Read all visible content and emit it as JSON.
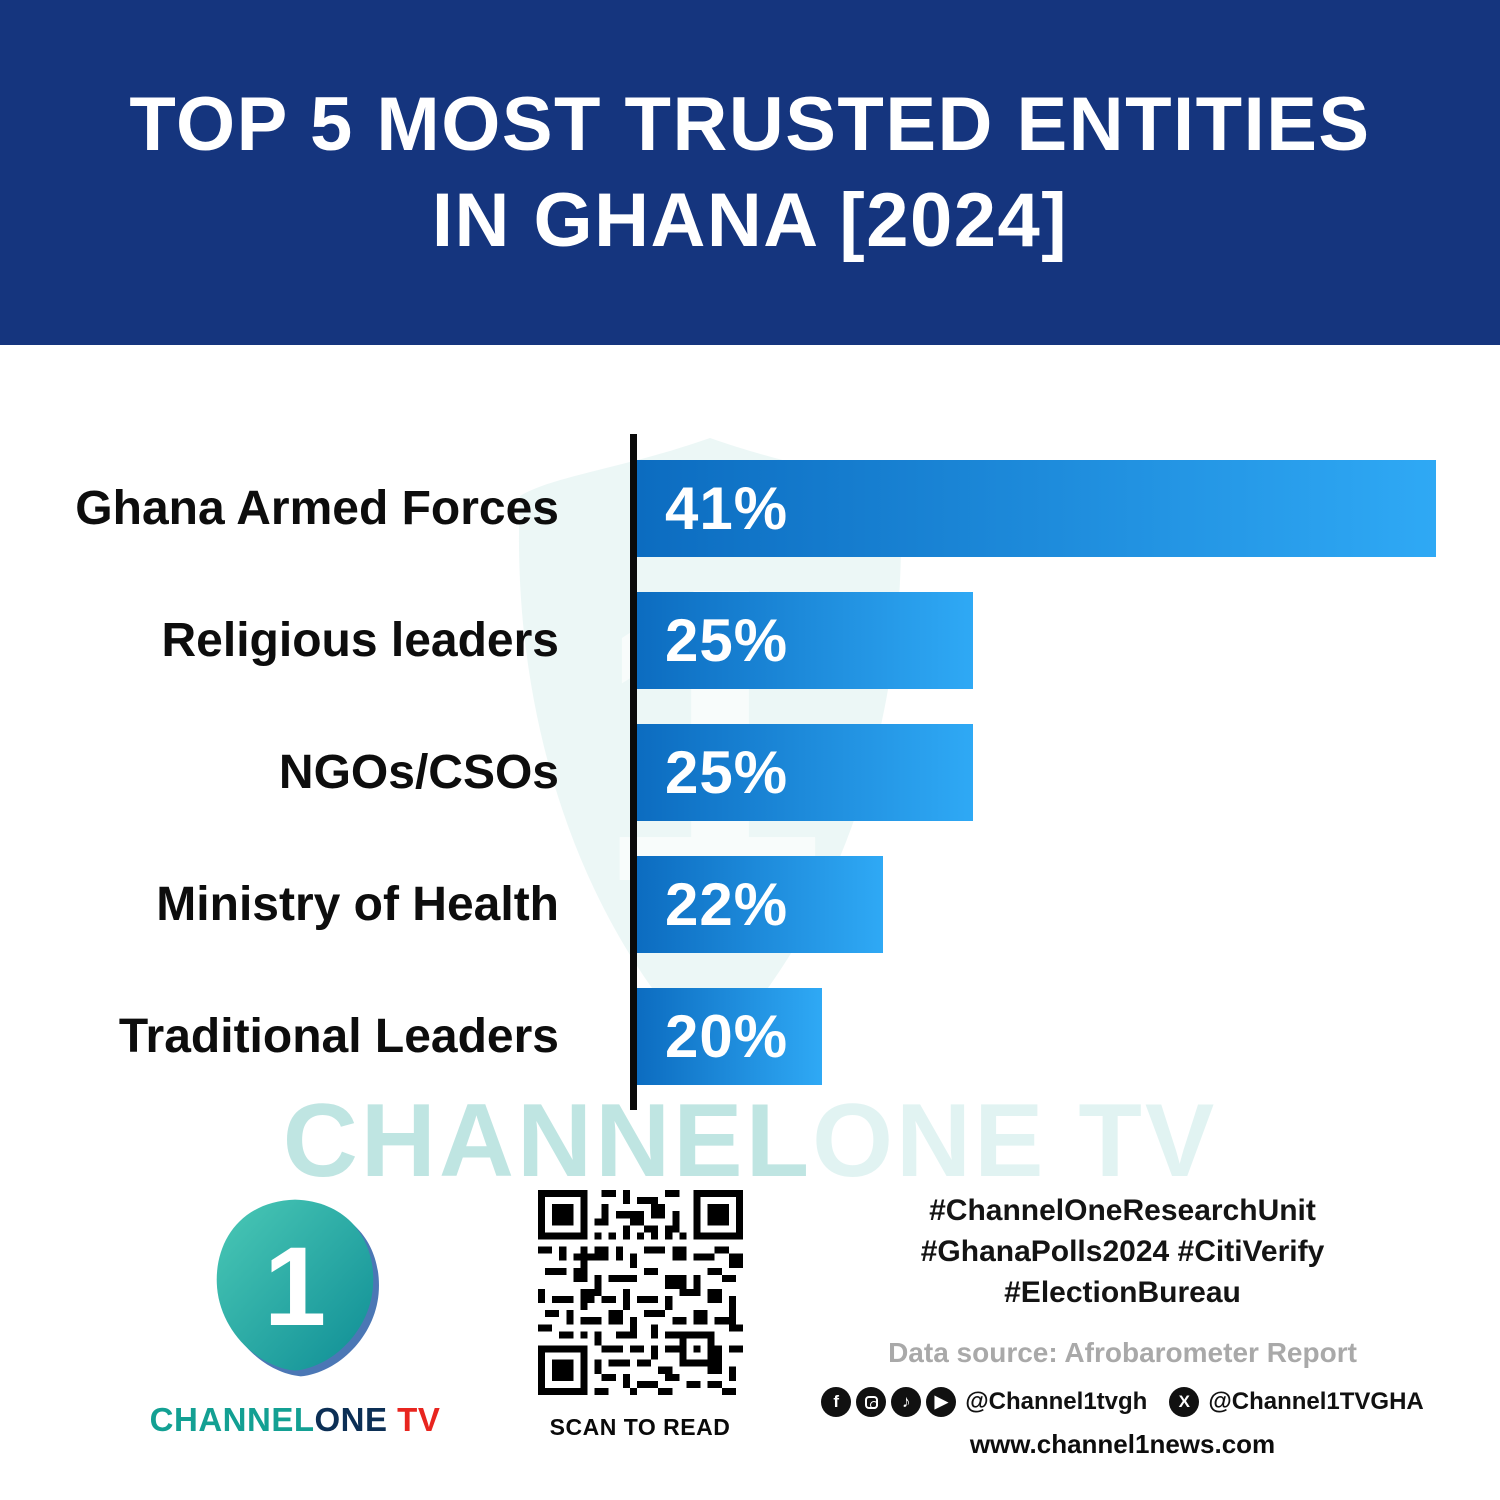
{
  "header": {
    "title_line1": "TOP 5 MOST TRUSTED ENTITIES",
    "title_line2": "IN GHANA [2024]",
    "bg_color": "#15357e",
    "text_color": "#ffffff"
  },
  "chart_data": {
    "type": "bar",
    "orientation": "horizontal",
    "title": "TOP 5 MOST TRUSTED ENTITIES IN GHANA [2024]",
    "categories": [
      "Ghana Armed Forces",
      "Religious leaders",
      "NGOs/CSOs",
      "Ministry of Health",
      "Traditional Leaders"
    ],
    "values": [
      41,
      25,
      25,
      22,
      20
    ],
    "value_labels": [
      "41%",
      "25%",
      "25%",
      "22%",
      "20%"
    ],
    "unit": "%",
    "xlim": [
      0,
      41
    ],
    "grid": false,
    "legend": false,
    "bar_color_gradient": [
      "#0c6cc0",
      "#2fa9f5"
    ],
    "axis_color": "#0a0a0a",
    "bar_width_pct": [
      100,
      42,
      42,
      30.8,
      23.2
    ]
  },
  "watermark": {
    "channel": "CHANNEL",
    "one_tv": "ONE TV",
    "color": "#2caaa0"
  },
  "footer": {
    "logo": {
      "glyph": "1",
      "channel": "CHANNEL",
      "one": "ONE",
      "tv": " TV",
      "teal": "#13a093",
      "navy": "#0c2f55",
      "red": "#e8251f"
    },
    "qr_caption": "SCAN TO READ",
    "hashtags": [
      "#ChannelOneResearchUnit",
      "#GhanaPolls2024 #CitiVerify",
      "#ElectionBureau"
    ],
    "data_source": "Data source: Afrobarometer Report",
    "handle_main": "@Channel1tvgh",
    "handle_x": "@Channel1TVGHA",
    "website": "www.channel1news.com"
  }
}
